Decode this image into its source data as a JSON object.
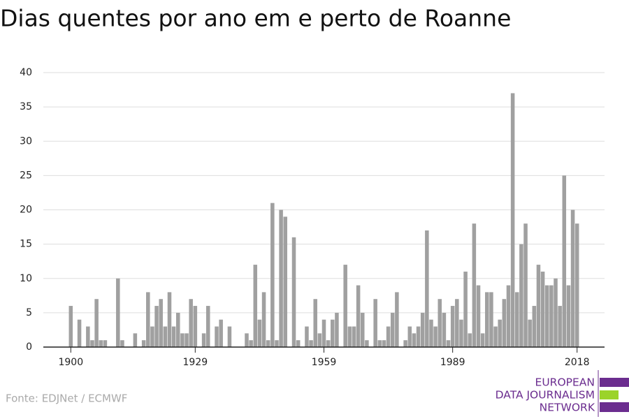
{
  "chart_data": {
    "type": "bar",
    "title": "Dias quentes por ano em e perto de Roanne",
    "source": "Fonte: EDJNet / ECMWF",
    "logo": [
      "EUROPEAN",
      "DATA JOURNALISM",
      "NETWORK"
    ],
    "color": "#a0a0a0",
    "x": [
      1900,
      1901,
      1902,
      1903,
      1904,
      1905,
      1906,
      1907,
      1908,
      1909,
      1910,
      1911,
      1912,
      1913,
      1914,
      1915,
      1916,
      1917,
      1918,
      1919,
      1920,
      1921,
      1922,
      1923,
      1924,
      1925,
      1926,
      1927,
      1928,
      1929,
      1930,
      1931,
      1932,
      1933,
      1934,
      1935,
      1936,
      1937,
      1938,
      1939,
      1940,
      1941,
      1942,
      1943,
      1944,
      1945,
      1946,
      1947,
      1948,
      1949,
      1950,
      1951,
      1952,
      1953,
      1954,
      1955,
      1956,
      1957,
      1958,
      1959,
      1960,
      1961,
      1962,
      1963,
      1964,
      1965,
      1966,
      1967,
      1968,
      1969,
      1970,
      1971,
      1972,
      1973,
      1974,
      1975,
      1976,
      1977,
      1978,
      1979,
      1980,
      1981,
      1982,
      1983,
      1984,
      1985,
      1986,
      1987,
      1988,
      1989,
      1990,
      1991,
      1992,
      1993,
      1994,
      1995,
      1996,
      1997,
      1998,
      1999,
      2000,
      2001,
      2002,
      2003,
      2004,
      2005,
      2006,
      2007,
      2008,
      2009,
      2010,
      2011,
      2012,
      2013,
      2014,
      2015,
      2016,
      2017,
      2018
    ],
    "values": [
      6,
      0,
      4,
      0,
      3,
      1,
      7,
      1,
      1,
      0,
      0,
      10,
      1,
      0,
      0,
      2,
      0,
      1,
      8,
      3,
      6,
      7,
      3,
      8,
      3,
      5,
      2,
      2,
      7,
      6,
      0,
      2,
      6,
      0,
      3,
      4,
      0,
      3,
      0,
      0,
      0,
      2,
      1,
      12,
      4,
      8,
      1,
      21,
      1,
      20,
      19,
      0,
      16,
      1,
      0,
      3,
      1,
      7,
      2,
      4,
      1,
      4,
      5,
      0,
      12,
      3,
      3,
      9,
      5,
      1,
      0,
      7,
      1,
      1,
      3,
      5,
      8,
      0,
      1,
      3,
      2,
      3,
      5,
      17,
      4,
      3,
      7,
      5,
      1,
      6,
      7,
      4,
      11,
      2,
      18,
      9,
      2,
      8,
      8,
      3,
      4,
      7,
      9,
      37,
      8,
      15,
      18,
      4,
      6,
      12,
      11,
      9,
      9,
      10,
      6,
      25,
      9,
      20,
      18
    ],
    "xlim": [
      1893.6,
      2024.4
    ],
    "xticks": [
      1900,
      1929,
      1959,
      1989,
      2018
    ],
    "ylim": [
      0,
      40
    ],
    "yticks": [
      0,
      5,
      10,
      15,
      20,
      25,
      30,
      35,
      40
    ],
    "grid": true
  }
}
